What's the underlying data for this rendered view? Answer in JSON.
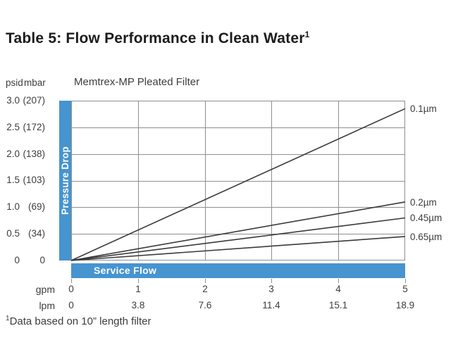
{
  "page": {
    "title": "Table 5: Flow Performance in Clean Water",
    "title_sup": "1",
    "footnote_sup": "1",
    "footnote_text": "Data based on 10” length filter"
  },
  "chart": {
    "title": "Memtrex-MP Pleated Filter",
    "y_unit_psid": "psid",
    "y_unit_mbar": "mbar",
    "y_axis_label": "Pressure Drop",
    "x_axis_label": "Service Flow",
    "x_unit_gpm": "gpm",
    "x_unit_lpm": "lpm"
  },
  "chart_data": {
    "type": "line",
    "title": "Memtrex-MP Pleated Filter",
    "xlabel": "Service Flow",
    "ylabel": "Pressure Drop",
    "xlim": [
      0,
      5
    ],
    "ylim": [
      0,
      3.0
    ],
    "grid": true,
    "legend_position": "right-of-line-ends",
    "x_ticks_gpm": [
      "0",
      "1",
      "2",
      "3",
      "4",
      "5"
    ],
    "x_ticks_lpm": [
      "0",
      "3.8",
      "7.6",
      "11.4",
      "15.1",
      "18.9"
    ],
    "y_ticks_psid": [
      "3.0",
      "2.5",
      "2.0",
      "1.5",
      "1.0",
      "0.5",
      "0"
    ],
    "y_ticks_mbar": [
      "(207)",
      "(172)",
      "(138)",
      "(103)",
      "(69)",
      "(34)",
      "0"
    ],
    "series": [
      {
        "name": "0.1µm",
        "x": [
          0,
          5
        ],
        "values": [
          0,
          2.85
        ]
      },
      {
        "name": "0.2µm",
        "x": [
          0,
          5
        ],
        "values": [
          0,
          1.1
        ]
      },
      {
        "name": "0.45µm",
        "x": [
          0,
          5
        ],
        "values": [
          0,
          0.8
        ]
      },
      {
        "name": "0.65µm",
        "x": [
          0,
          5
        ],
        "values": [
          0,
          0.45
        ]
      }
    ]
  },
  "colors": {
    "accent_blue": "#4694D0",
    "line_color": "#3a3a3a",
    "grid_color": "#8f8f8f",
    "text": "#3d3d3d"
  }
}
